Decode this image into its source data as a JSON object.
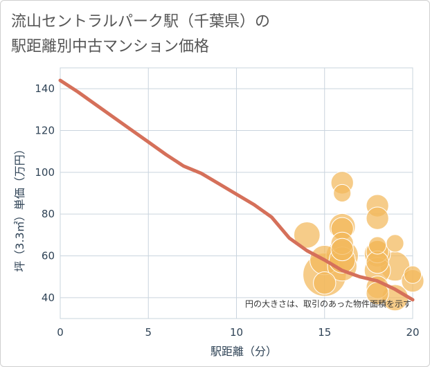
{
  "title_lines": [
    "流山セントラルパーク駅（千葉県）の",
    "駅距離別中古マンション価格"
  ],
  "chart_data": {
    "type": "scatter",
    "title": "流山セントラルパーク駅（千葉県）の駅距離別中古マンション価格",
    "xlabel": "駅距離（分）",
    "ylabel": "坪（3.3㎡）単価（万円）",
    "xlim": [
      0,
      20
    ],
    "ylim": [
      30,
      150
    ],
    "x_ticks": [
      0,
      5,
      10,
      15,
      20
    ],
    "y_ticks": [
      40,
      60,
      80,
      100,
      120,
      140
    ],
    "grid": true,
    "note": "円の大きさは、取引のあった物件面積を示す",
    "colors": {
      "bubble": "#f3b85c",
      "trend": "#d5705a",
      "grid": "#c9d4de"
    },
    "points": [
      {
        "x": 14,
        "y": 70,
        "size": 3
      },
      {
        "x": 15,
        "y": 51,
        "size": 10
      },
      {
        "x": 15,
        "y": 58,
        "size": 4
      },
      {
        "x": 15,
        "y": 47,
        "size": 2
      },
      {
        "x": 16,
        "y": 95,
        "size": 2
      },
      {
        "x": 16,
        "y": 90,
        "size": 1
      },
      {
        "x": 16,
        "y": 74,
        "size": 3
      },
      {
        "x": 16,
        "y": 73,
        "size": 2
      },
      {
        "x": 16,
        "y": 66,
        "size": 2
      },
      {
        "x": 16,
        "y": 63,
        "size": 2
      },
      {
        "x": 16,
        "y": 60,
        "size": 5
      },
      {
        "x": 16,
        "y": 58,
        "size": 3
      },
      {
        "x": 16,
        "y": 55,
        "size": 4
      },
      {
        "x": 18,
        "y": 84,
        "size": 2
      },
      {
        "x": 18,
        "y": 78,
        "size": 2
      },
      {
        "x": 18,
        "y": 65,
        "size": 1
      },
      {
        "x": 18,
        "y": 62,
        "size": 2
      },
      {
        "x": 18,
        "y": 61,
        "size": 3
      },
      {
        "x": 18,
        "y": 57,
        "size": 2
      },
      {
        "x": 18,
        "y": 53,
        "size": 3
      },
      {
        "x": 18,
        "y": 45,
        "size": 2
      },
      {
        "x": 18,
        "y": 42,
        "size": 2
      },
      {
        "x": 19,
        "y": 66,
        "size": 1
      },
      {
        "x": 19,
        "y": 55,
        "size": 4
      },
      {
        "x": 19,
        "y": 40,
        "size": 3
      },
      {
        "x": 20,
        "y": 51,
        "size": 1
      },
      {
        "x": 20,
        "y": 48,
        "size": 2
      }
    ],
    "trend": {
      "x": [
        0,
        1,
        2,
        3,
        4,
        5,
        6,
        7,
        8,
        9,
        10,
        11,
        12,
        13,
        14,
        15,
        16,
        17,
        18,
        19,
        20
      ],
      "y": [
        144,
        138.5,
        132.5,
        126.5,
        120.5,
        114.5,
        108.5,
        103,
        99.5,
        94.5,
        89.5,
        84.5,
        78.5,
        68.5,
        62.5,
        58,
        53,
        50,
        48,
        44,
        39
      ]
    }
  }
}
